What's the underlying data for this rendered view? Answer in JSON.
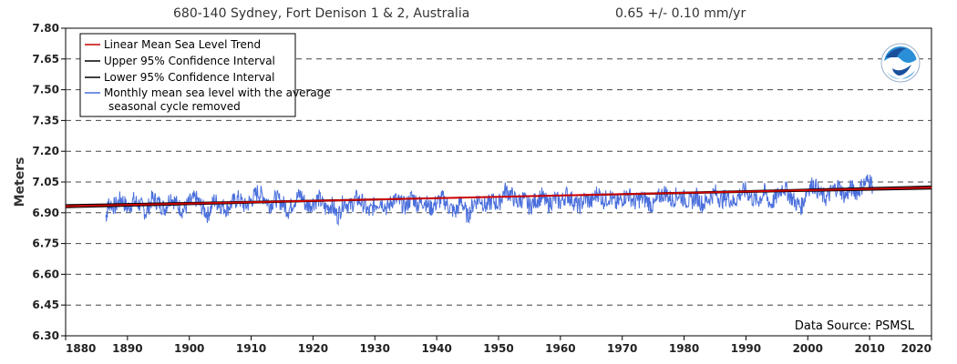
{
  "header": {
    "station": "680-140 Sydney, Fort Denison 1 & 2, Australia",
    "trend": "0.65 +/-  0.10 mm/yr"
  },
  "chart_data": {
    "type": "line",
    "title": "680-140 Sydney, Fort Denison 1 & 2, Australia",
    "subtitle": "0.65 +/-  0.10 mm/yr",
    "xlabel": "",
    "ylabel": "Meters",
    "xlim": [
      1880,
      2020
    ],
    "ylim": [
      6.3,
      7.8
    ],
    "x_ticks": [
      "1880",
      "1890",
      "1900",
      "1910",
      "1920",
      "1930",
      "1940",
      "1950",
      "1960",
      "1970",
      "1980",
      "1990",
      "2000",
      "2010",
      "2020"
    ],
    "y_ticks": [
      "6.30",
      "6.45",
      "6.60",
      "6.75",
      "6.90",
      "7.05",
      "7.20",
      "7.35",
      "7.50",
      "7.65",
      "7.80"
    ],
    "grid": "horizontal dashed",
    "legend_position": "top-left",
    "data_source": "Data Source: PSMSL",
    "series": [
      {
        "name": "Linear Mean Sea Level Trend",
        "color": "#cc0000",
        "x": [
          1880,
          2020
        ],
        "y": [
          6.932,
          7.023
        ]
      },
      {
        "name": "Upper 95% Confidence Interval",
        "color": "#000000",
        "x": [
          1880,
          2020
        ],
        "y": [
          6.939,
          7.016
        ]
      },
      {
        "name": "Lower 95% Confidence Interval",
        "color": "#000000",
        "x": [
          1880,
          2020
        ],
        "y": [
          6.925,
          7.03
        ]
      },
      {
        "name": "Monthly mean sea level with the average seasonal cycle removed",
        "color": "#4a6fdc",
        "x": [
          1886.5,
          1887,
          1888,
          1889,
          1890,
          1891,
          1892,
          1893,
          1894,
          1895,
          1896,
          1897,
          1898,
          1899,
          1900,
          1901,
          1902,
          1903,
          1904,
          1905,
          1906,
          1907,
          1908,
          1909,
          1910,
          1911,
          1912,
          1913,
          1914,
          1915,
          1916,
          1917,
          1918,
          1919,
          1920,
          1921,
          1922,
          1923,
          1924,
          1925,
          1926,
          1927,
          1928,
          1929,
          1930,
          1931,
          1932,
          1933,
          1934,
          1935,
          1936,
          1937,
          1938,
          1939,
          1940,
          1941,
          1942,
          1943,
          1944,
          1945,
          1946,
          1947,
          1948,
          1949,
          1950,
          1951,
          1952,
          1953,
          1954,
          1955,
          1956,
          1957,
          1958,
          1959,
          1960,
          1961,
          1962,
          1963,
          1964,
          1965,
          1966,
          1967,
          1968,
          1969,
          1970,
          1971,
          1972,
          1973,
          1974,
          1975,
          1976,
          1977,
          1978,
          1979,
          1980,
          1981,
          1982,
          1983,
          1984,
          1985,
          1986,
          1987,
          1988,
          1989,
          1990,
          1991,
          1992,
          1993,
          1994,
          1995,
          1996,
          1997,
          1998,
          1999,
          2000,
          2001,
          2002,
          2003,
          2004,
          2005,
          2006,
          2007,
          2008,
          2009,
          2010,
          2010.5
        ],
        "y": [
          6.88,
          6.95,
          6.93,
          6.97,
          6.92,
          6.96,
          6.94,
          6.9,
          6.97,
          6.95,
          6.92,
          6.98,
          6.94,
          6.91,
          6.95,
          6.97,
          6.93,
          6.89,
          6.96,
          6.94,
          6.92,
          6.95,
          6.97,
          6.93,
          6.96,
          7.0,
          6.98,
          6.94,
          6.97,
          6.95,
          6.91,
          6.96,
          6.99,
          6.93,
          6.95,
          6.97,
          6.92,
          6.94,
          6.88,
          6.96,
          6.93,
          6.97,
          6.95,
          6.9,
          6.94,
          6.96,
          6.92,
          6.97,
          6.95,
          6.93,
          6.98,
          6.94,
          6.96,
          6.92,
          6.95,
          6.97,
          6.93,
          6.9,
          6.96,
          6.88,
          6.95,
          6.97,
          6.93,
          6.96,
          6.94,
          7.01,
          6.99,
          6.95,
          6.97,
          6.93,
          6.96,
          6.98,
          6.94,
          6.97,
          6.95,
          6.99,
          6.96,
          6.93,
          6.97,
          6.95,
          7.0,
          6.96,
          6.98,
          6.94,
          6.97,
          6.99,
          6.95,
          6.97,
          6.96,
          6.93,
          6.98,
          7.0,
          6.96,
          6.99,
          6.97,
          6.95,
          6.98,
          6.94,
          6.97,
          7.0,
          6.96,
          6.98,
          6.95,
          6.99,
          7.01,
          6.97,
          6.96,
          7.0,
          6.94,
          6.98,
          7.03,
          6.99,
          6.95,
          6.93,
          7.02,
          7.04,
          6.99,
          6.97,
          7.01,
          7.03,
          6.98,
          7.02,
          7.0,
          7.04,
          7.06,
          7.03
        ]
      }
    ]
  }
}
